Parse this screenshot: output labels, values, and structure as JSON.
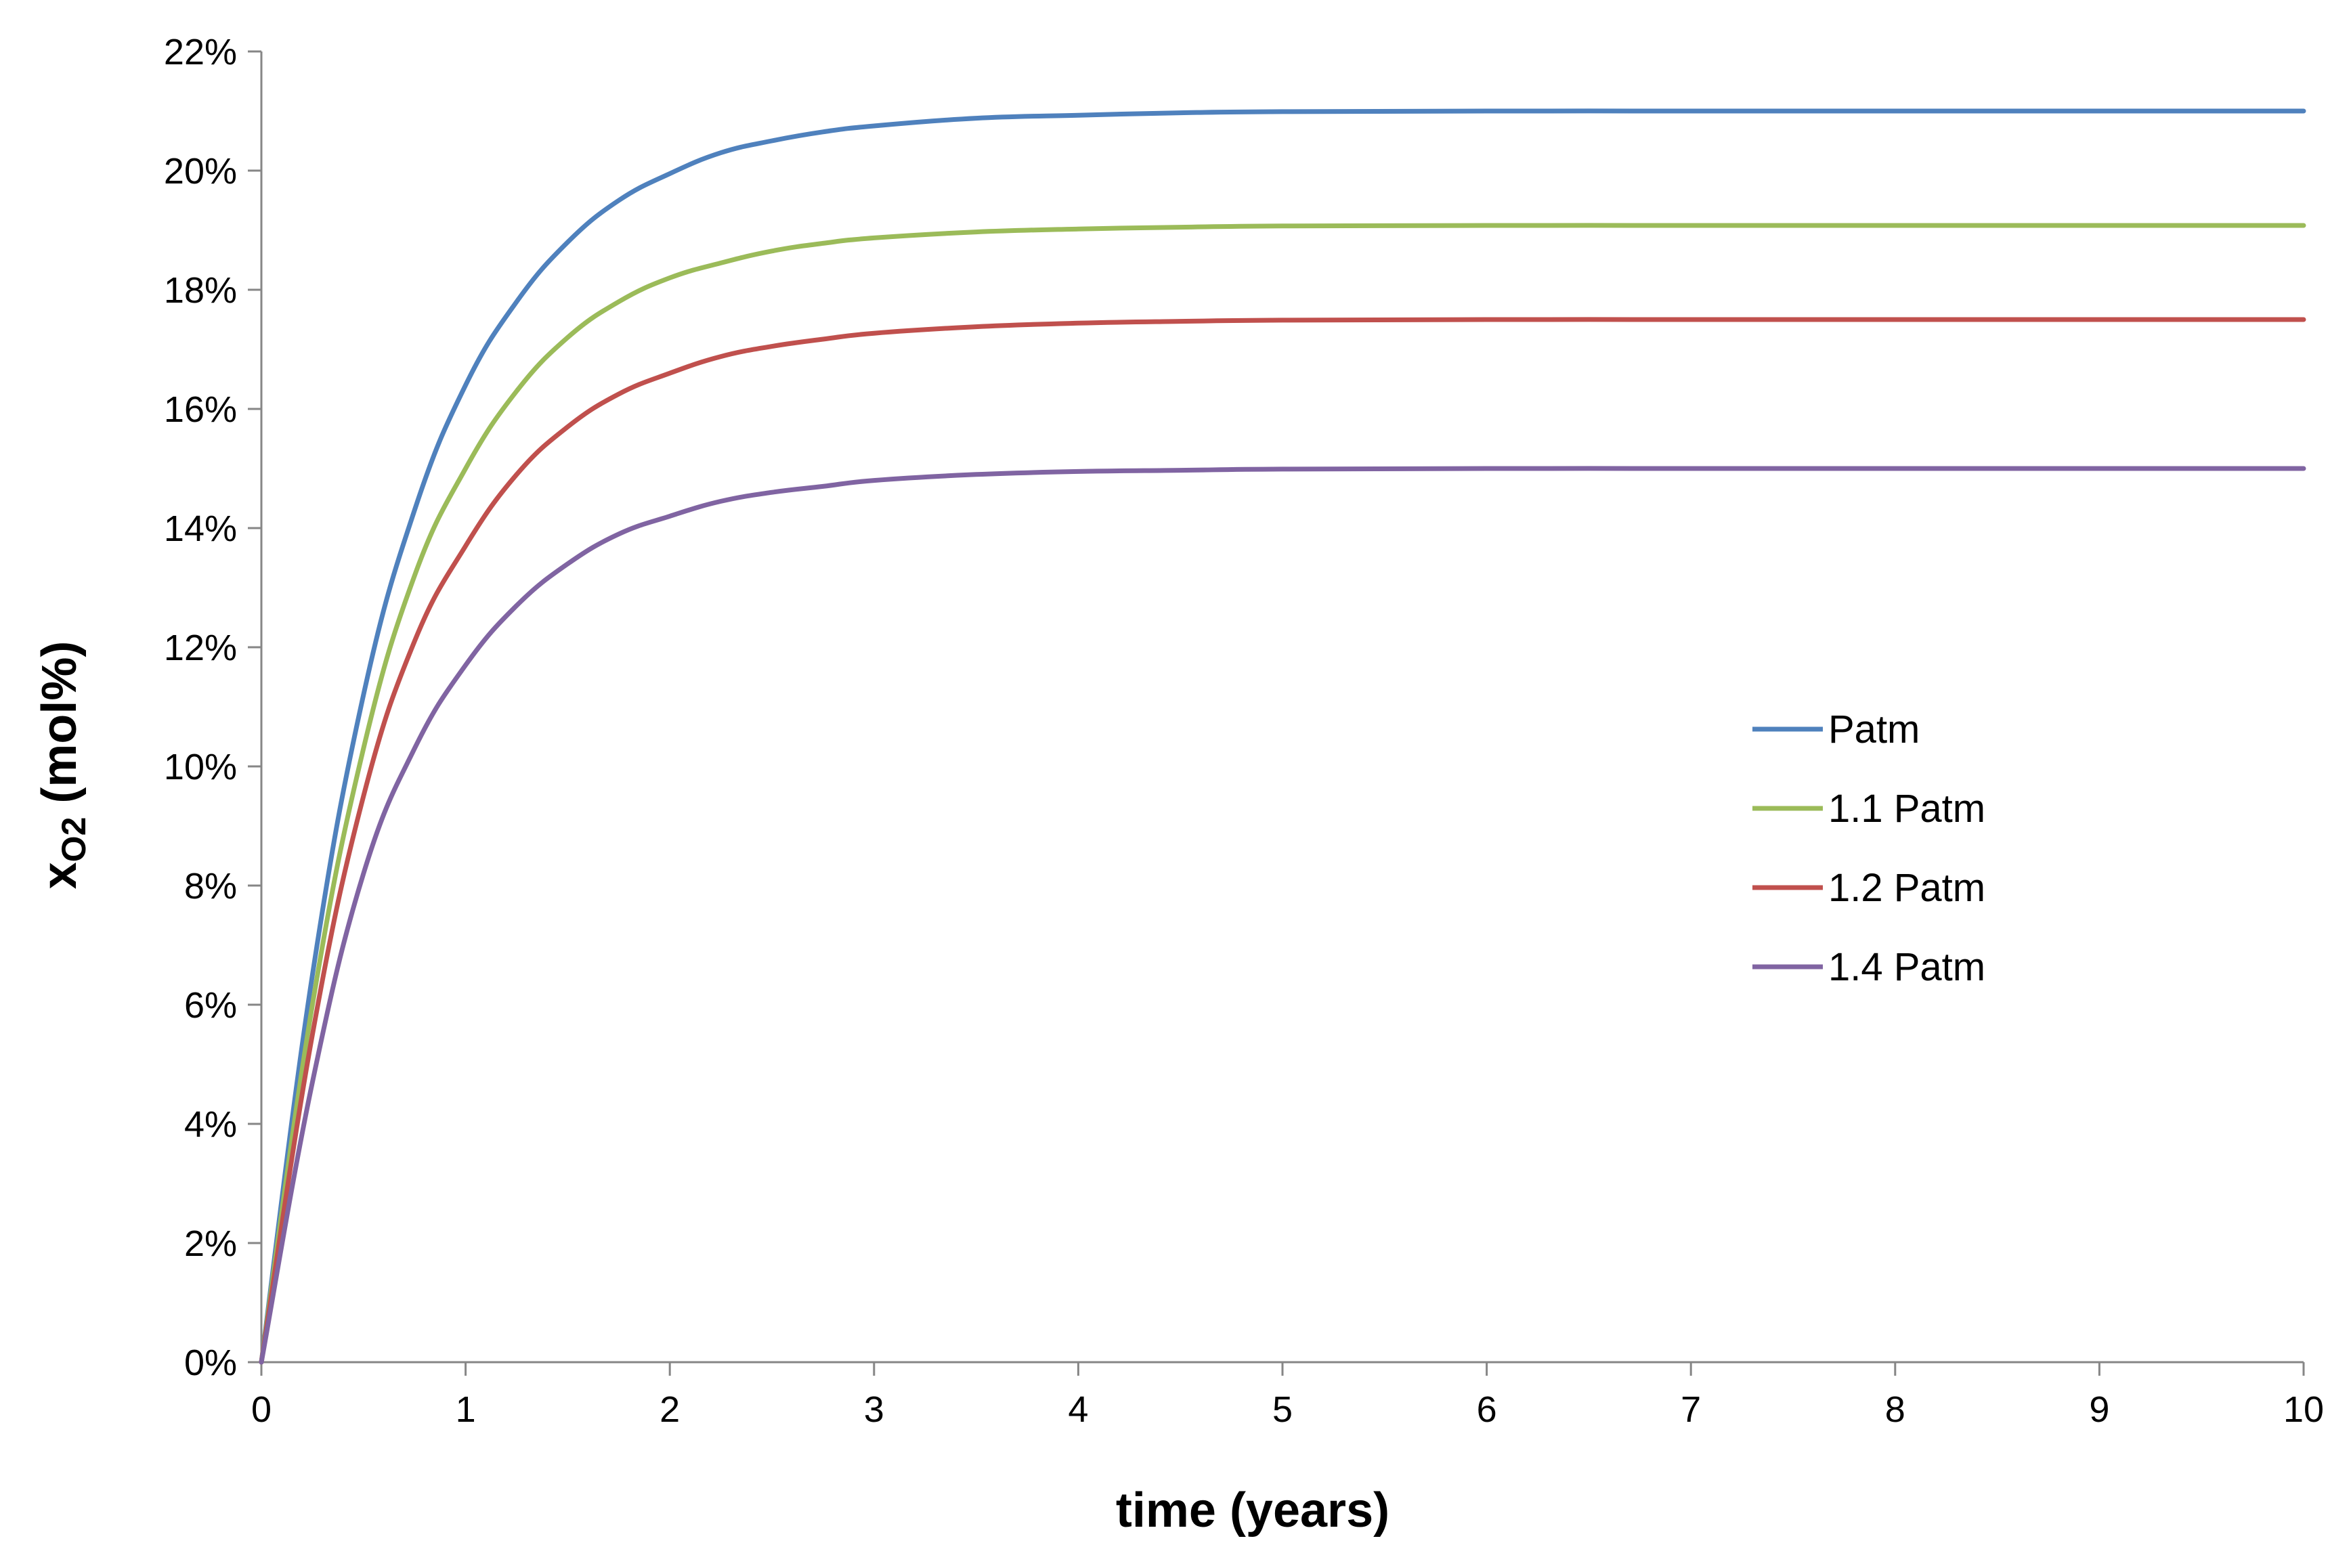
{
  "chart_data": {
    "type": "line",
    "title": "",
    "xlabel": "time (years)",
    "ylabel_main": "x",
    "ylabel_subscript": "O2",
    "ylabel_suffix": " (mol%)",
    "xlim": [
      0,
      10
    ],
    "ylim": [
      0,
      22
    ],
    "x_ticks": [
      0,
      1,
      2,
      3,
      4,
      5,
      6,
      7,
      8,
      9,
      10
    ],
    "x_tick_labels": [
      "0",
      "1",
      "2",
      "3",
      "4",
      "5",
      "6",
      "7",
      "8",
      "9",
      "10"
    ],
    "y_ticks": [
      0,
      2,
      4,
      6,
      8,
      10,
      12,
      14,
      16,
      18,
      20,
      22
    ],
    "y_tick_labels": [
      "0%",
      "2%",
      "4%",
      "6%",
      "8%",
      "10%",
      "12%",
      "14%",
      "16%",
      "18%",
      "20%",
      "22%"
    ],
    "grid": false,
    "legend_position": "right-middle",
    "x": [
      0,
      0.25,
      0.5,
      0.75,
      1,
      1.25,
      1.5,
      1.75,
      2,
      2.25,
      2.5,
      2.75,
      3,
      3.5,
      4,
      4.5,
      5,
      6,
      7,
      8,
      9,
      10
    ],
    "series": [
      {
        "name": "Patm",
        "color": "#4F81BD",
        "values": [
          0,
          6.5,
          11.2,
          14.3,
          16.4,
          17.8,
          18.8,
          19.5,
          19.95,
          20.3,
          20.5,
          20.65,
          20.75,
          20.88,
          20.93,
          20.97,
          20.99,
          21.0,
          21.0,
          21.0,
          21.0,
          21.0
        ]
      },
      {
        "name": "1.1 Patm",
        "color": "#9BBB59",
        "values": [
          0,
          6.0,
          10.3,
          13.2,
          15.0,
          16.3,
          17.2,
          17.8,
          18.2,
          18.45,
          18.65,
          18.78,
          18.87,
          18.97,
          19.02,
          19.05,
          19.07,
          19.08,
          19.08,
          19.08,
          19.08,
          19.08
        ]
      },
      {
        "name": "1.2 Patm",
        "color": "#C0504D",
        "values": [
          0,
          5.5,
          9.5,
          12.1,
          13.7,
          14.9,
          15.7,
          16.25,
          16.6,
          16.88,
          17.05,
          17.17,
          17.27,
          17.38,
          17.44,
          17.47,
          17.49,
          17.5,
          17.5,
          17.5,
          17.5,
          17.5
        ]
      },
      {
        "name": "1.4 Patm",
        "color": "#8064A2",
        "values": [
          0,
          4.7,
          8.2,
          10.3,
          11.7,
          12.7,
          13.4,
          13.9,
          14.2,
          14.45,
          14.6,
          14.7,
          14.8,
          14.9,
          14.95,
          14.97,
          14.99,
          15.0,
          15.0,
          15.0,
          15.0,
          15.0
        ]
      }
    ]
  }
}
